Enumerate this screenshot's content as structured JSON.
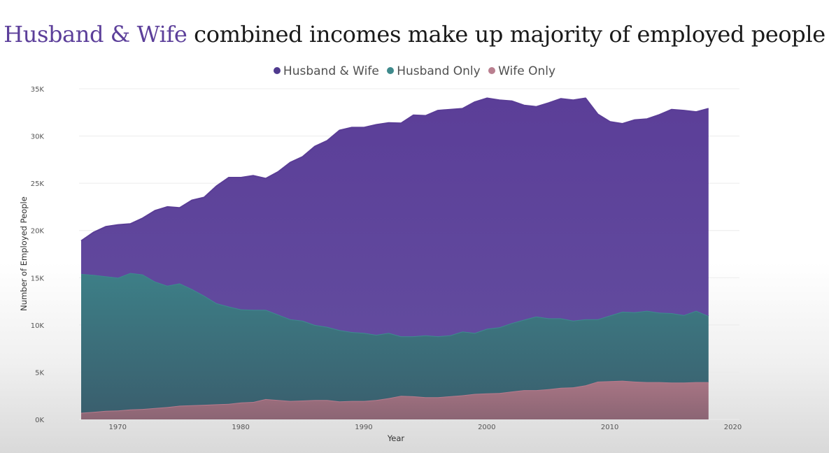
{
  "chart_data": {
    "type": "area",
    "stacked": true,
    "title_accent": "Husband & Wife",
    "title_rest": " combined incomes make up majority of employed people",
    "xlabel": "Year",
    "ylabel": "Number of Employed People",
    "xlim": [
      1967,
      2020
    ],
    "ylim": [
      0,
      35000
    ],
    "x_ticks": [
      1970,
      1980,
      1990,
      2000,
      2010,
      2020
    ],
    "x_tick_labels": [
      "1970",
      "1980",
      "1990",
      "2000",
      "2010",
      "2020"
    ],
    "y_ticks": [
      0,
      5000,
      10000,
      15000,
      20000,
      25000,
      30000,
      35000
    ],
    "y_tick_labels": [
      "0K",
      "5K",
      "10K",
      "15K",
      "20K",
      "25K",
      "30K",
      "35K"
    ],
    "grid": true,
    "legend_position": "top-center",
    "x": [
      1967,
      1968,
      1969,
      1970,
      1971,
      1972,
      1973,
      1974,
      1975,
      1976,
      1977,
      1978,
      1979,
      1980,
      1981,
      1982,
      1983,
      1984,
      1985,
      1986,
      1987,
      1988,
      1989,
      1990,
      1991,
      1992,
      1993,
      1994,
      1995,
      1996,
      1997,
      1998,
      1999,
      2000,
      2001,
      2002,
      2003,
      2004,
      2005,
      2006,
      2007,
      2008,
      2009,
      2010,
      2011,
      2012,
      2013,
      2014,
      2015,
      2016,
      2017,
      2018
    ],
    "series": [
      {
        "name": "Wife Only",
        "color": "#b77a8c",
        "values": [
          700,
          800,
          900,
          950,
          1050,
          1100,
          1200,
          1300,
          1450,
          1500,
          1550,
          1600,
          1650,
          1800,
          1850,
          2150,
          2050,
          1950,
          2000,
          2050,
          2050,
          1900,
          1950,
          1950,
          2050,
          2250,
          2500,
          2450,
          2350,
          2350,
          2450,
          2550,
          2700,
          2750,
          2800,
          2950,
          3100,
          3100,
          3200,
          3350,
          3400,
          3600,
          4000,
          4050,
          4100,
          4000,
          3950,
          3950,
          3900,
          3900,
          3950,
          3950
        ]
      },
      {
        "name": "Husband Only",
        "color": "#3d8a8e",
        "values": [
          14700,
          14500,
          14250,
          14050,
          14450,
          14250,
          13400,
          12850,
          12950,
          12300,
          11550,
          10700,
          10300,
          9850,
          9750,
          9450,
          9050,
          8650,
          8450,
          7950,
          7750,
          7550,
          7300,
          7200,
          6900,
          6900,
          6300,
          6350,
          6550,
          6450,
          6450,
          6750,
          6450,
          6850,
          6950,
          7250,
          7450,
          7800,
          7500,
          7350,
          7050,
          7000,
          6600,
          6950,
          7300,
          7350,
          7550,
          7350,
          7350,
          7150,
          7550,
          7000
        ]
      },
      {
        "name": "Husband & Wife",
        "color": "#5a3d96",
        "values": [
          3500,
          4500,
          5250,
          5600,
          5200,
          5950,
          7500,
          8350,
          8000,
          9400,
          10400,
          12400,
          13650,
          13950,
          14200,
          13900,
          15100,
          16600,
          17350,
          18900,
          19700,
          21150,
          21650,
          21750,
          22250,
          22250,
          22550,
          23400,
          23250,
          23900,
          23900,
          23600,
          24450,
          24400,
          24050,
          23500,
          22700,
          22200,
          22800,
          23250,
          23350,
          23400,
          21700,
          20500,
          19900,
          20350,
          20300,
          20950,
          21550,
          21650,
          21050,
          21950
        ]
      }
    ],
    "legend_order": [
      "Husband & Wife",
      "Husband Only",
      "Wife Only"
    ]
  }
}
